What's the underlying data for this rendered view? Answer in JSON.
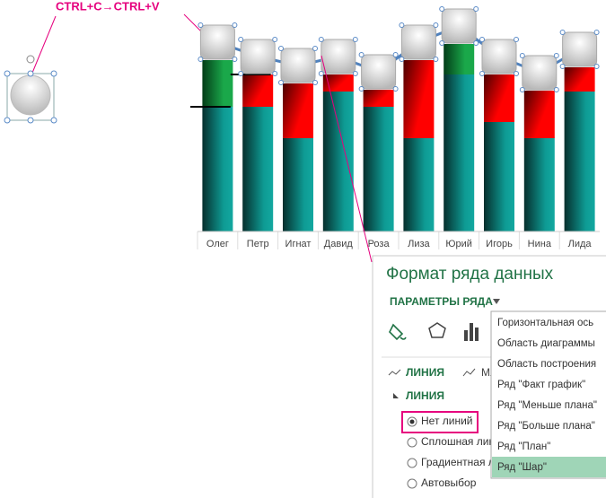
{
  "annotation": "CTRL+C→CTRL+V",
  "chart_data": {
    "type": "bar",
    "stacked": true,
    "categories": [
      "Олег",
      "Петр",
      "Игнат",
      "Давид",
      "Роза",
      "Лиза",
      "Юрий",
      "Игорь",
      "Нина",
      "Лида"
    ],
    "series": [
      {
        "color": "#0e9b94",
        "values": [
          139,
          139,
          104,
          156,
          139,
          104,
          175,
          122,
          104,
          156
        ]
      },
      {
        "color": "#ff0000",
        "values": [
          null,
          36,
          61,
          19,
          19,
          87,
          null,
          53,
          53,
          27
        ]
      },
      {
        "color": "#1aa84a",
        "values": [
          52,
          null,
          null,
          null,
          null,
          null,
          34,
          null,
          null,
          null
        ]
      }
    ],
    "ylim": [
      0,
      250
    ]
  },
  "pane": {
    "title": "Формат ряда данных",
    "section": "ПАРАМЕТРЫ РЯДА",
    "tabs": [
      "ЛИНИЯ",
      "МАРКЕР"
    ],
    "group": "ЛИНИЯ",
    "options": [
      "Нет линий",
      "Сплошная линия",
      "Градиентная линия",
      "Автовыбор"
    ],
    "dropdown": [
      "Горизонтальная ось",
      "Область диаграммы",
      "Область построения",
      "Ряд \"Факт график\"",
      "Ряд \"Меньше плана\"",
      "Ряд \"Больше плана\"",
      "Ряд \"План\"",
      "Ряд \"Шар\""
    ]
  }
}
